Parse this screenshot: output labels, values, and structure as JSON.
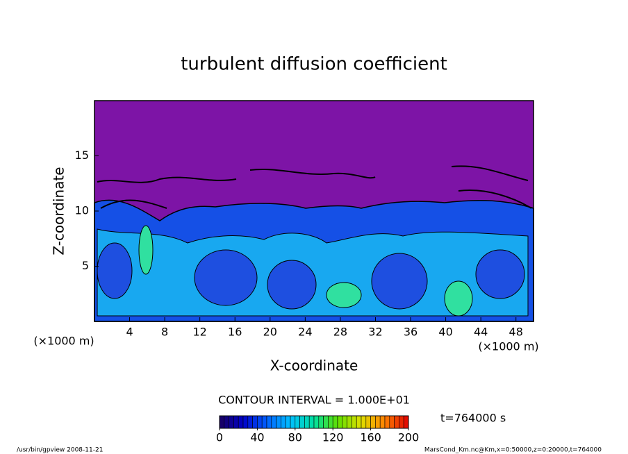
{
  "chart_data": {
    "type": "contour",
    "title": "turbulent diffusion coefficient",
    "x_label": "X-coordinate",
    "y_label": "Z-coordinate",
    "x_unit": "(×1000 m)",
    "xlim": [
      0,
      50
    ],
    "xticks": [
      4,
      8,
      12,
      16,
      20,
      24,
      28,
      32,
      36,
      40,
      44,
      48
    ],
    "ylim": [
      0,
      20
    ],
    "yticks": [
      5,
      10,
      15
    ],
    "contour_interval": "CONTOUR INTERVAL = 1.000E+01",
    "colorbar_lim": [
      0,
      200
    ],
    "colorbar_ticks": [
      0,
      40,
      80,
      120,
      160,
      200
    ],
    "colormap": [
      "#1a0060",
      "#0000c8",
      "#0060ff",
      "#00c0ff",
      "#00e0a0",
      "#60e000",
      "#e0e000",
      "#ff8000",
      "#e00000"
    ],
    "time_label": "t=764000 s",
    "footer_left": "/usr/bin/gpview   2008-11-21",
    "footer_right": "MarsCond_Km.nc@Km,x=0:50000,z=0:20000,t=764000"
  }
}
